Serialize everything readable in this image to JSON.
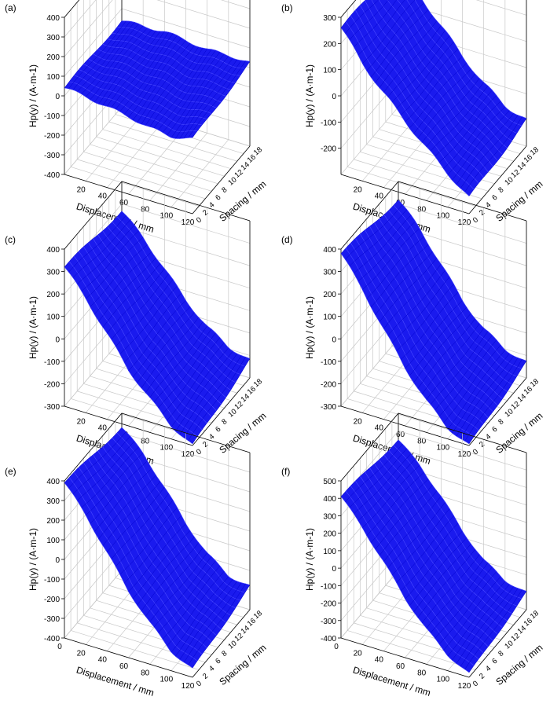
{
  "chart_data": [
    {
      "panel": "(a)",
      "type": "surface3d",
      "zlabel": "Hp(y) / (A·m-1)",
      "xlabel": "Displacement / mm",
      "ylabel": "Spacing / mm",
      "zlim": [
        -400,
        400
      ],
      "zticks": [
        -400,
        -300,
        -200,
        -100,
        0,
        100,
        200,
        300,
        400
      ],
      "xticks": [
        20,
        40,
        60,
        80,
        100,
        120
      ],
      "yticks": [
        0,
        2,
        4,
        6,
        8,
        10,
        12,
        14,
        16,
        18
      ],
      "surface_color": "#1a1aee",
      "x_mm": [
        0,
        20,
        40,
        60,
        80,
        100,
        120
      ],
      "hp_at_spacing_0": [
        40,
        30,
        10,
        -5,
        -30,
        -40,
        -20
      ],
      "hp_at_spacing_18": [
        40,
        45,
        50,
        40,
        25,
        30,
        25
      ]
    },
    {
      "panel": "(b)",
      "type": "surface3d",
      "zlabel": "Hp(y) / (A·m-1)",
      "xlabel": "Displacement / mm",
      "ylabel": "Spacing / mm",
      "zlim": [
        -300,
        300
      ],
      "zticks": [
        -200,
        -100,
        0,
        100,
        200,
        300
      ],
      "xticks": [
        20,
        40,
        60,
        80,
        100,
        120
      ],
      "yticks": [
        0,
        2,
        4,
        6,
        8,
        10,
        12,
        14,
        16,
        18
      ],
      "surface_color": "#1a1aee",
      "x_mm": [
        0,
        20,
        40,
        60,
        80,
        100,
        120
      ],
      "hp_at_spacing_0": [
        260,
        150,
        60,
        -20,
        -100,
        -170,
        -240
      ],
      "hp_at_spacing_18": [
        240,
        150,
        60,
        -30,
        -110,
        -170,
        -200
      ]
    },
    {
      "panel": "(c)",
      "type": "surface3d",
      "zlabel": "Hp(y) / (A·m-1)",
      "xlabel": "Displacement / mm",
      "ylabel": "Spacing / mm",
      "zlim": [
        -300,
        400
      ],
      "zticks": [
        -300,
        -200,
        -100,
        0,
        100,
        200,
        300,
        400
      ],
      "xticks": [
        20,
        40,
        60,
        80,
        100,
        120
      ],
      "yticks": [
        0,
        2,
        4,
        6,
        8,
        10,
        12,
        14,
        16,
        18
      ],
      "surface_color": "#1a1aee",
      "x_mm": [
        0,
        20,
        40,
        60,
        80,
        100,
        120
      ],
      "hp_at_spacing_0": [
        320,
        210,
        80,
        -50,
        -150,
        -240,
        -300
      ],
      "hp_at_spacing_18": [
        270,
        180,
        70,
        -40,
        -130,
        -190,
        -220
      ]
    },
    {
      "panel": "(d)",
      "type": "surface3d",
      "zlabel": "Hp(y) / (A·m-1)",
      "xlabel": "Displacement / mm",
      "ylabel": "Spacing / mm",
      "zlim": [
        -300,
        400
      ],
      "zticks": [
        -300,
        -200,
        -100,
        0,
        100,
        200,
        300,
        400
      ],
      "xticks": [
        20,
        40,
        60,
        80,
        100,
        120
      ],
      "yticks": [
        0,
        2,
        4,
        6,
        8,
        10,
        12,
        14,
        16,
        18
      ],
      "surface_color": "#1a1aee",
      "x_mm": [
        0,
        20,
        40,
        60,
        80,
        100,
        120
      ],
      "hp_at_spacing_0": [
        380,
        250,
        100,
        -40,
        -160,
        -250,
        -300
      ],
      "hp_at_spacing_18": [
        320,
        220,
        90,
        -40,
        -140,
        -200,
        -230
      ]
    },
    {
      "panel": "(e)",
      "type": "surface3d",
      "zlabel": "Hp(y) / (A·m-1)",
      "xlabel": "Displacement / mm",
      "ylabel": "Spacing / mm",
      "zlim": [
        -400,
        400
      ],
      "zticks": [
        -400,
        -300,
        -200,
        -100,
        0,
        100,
        200,
        300,
        400
      ],
      "xticks": [
        0,
        20,
        40,
        60,
        80,
        100,
        120
      ],
      "yticks": [
        0,
        2,
        4,
        6,
        8,
        10,
        12,
        14,
        16,
        18
      ],
      "surface_color": "#1a1aee",
      "x_mm": [
        0,
        20,
        40,
        60,
        80,
        100,
        120
      ],
      "hp_at_spacing_0": [
        390,
        260,
        100,
        -60,
        -190,
        -300,
        -360
      ],
      "hp_at_spacing_18": [
        330,
        230,
        90,
        -60,
        -180,
        -260,
        -280
      ]
    },
    {
      "panel": "(f)",
      "type": "surface3d",
      "zlabel": "Hp(y) / (A·m-1)",
      "xlabel": "Displacement / mm",
      "ylabel": "Spacing / mm",
      "zlim": [
        -400,
        500
      ],
      "zticks": [
        -400,
        -300,
        -200,
        -100,
        0,
        100,
        200,
        300,
        400,
        500
      ],
      "xticks": [
        0,
        20,
        40,
        60,
        80,
        100,
        120
      ],
      "yticks": [
        0,
        2,
        4,
        6,
        8,
        10,
        12,
        14,
        16,
        18
      ],
      "surface_color": "#1a1aee",
      "x_mm": [
        0,
        20,
        40,
        60,
        80,
        100,
        120
      ],
      "hp_at_spacing_0": [
        410,
        270,
        110,
        -60,
        -200,
        -310,
        -380
      ],
      "hp_at_spacing_18": [
        350,
        240,
        100,
        -60,
        -190,
        -270,
        -300
      ]
    }
  ]
}
